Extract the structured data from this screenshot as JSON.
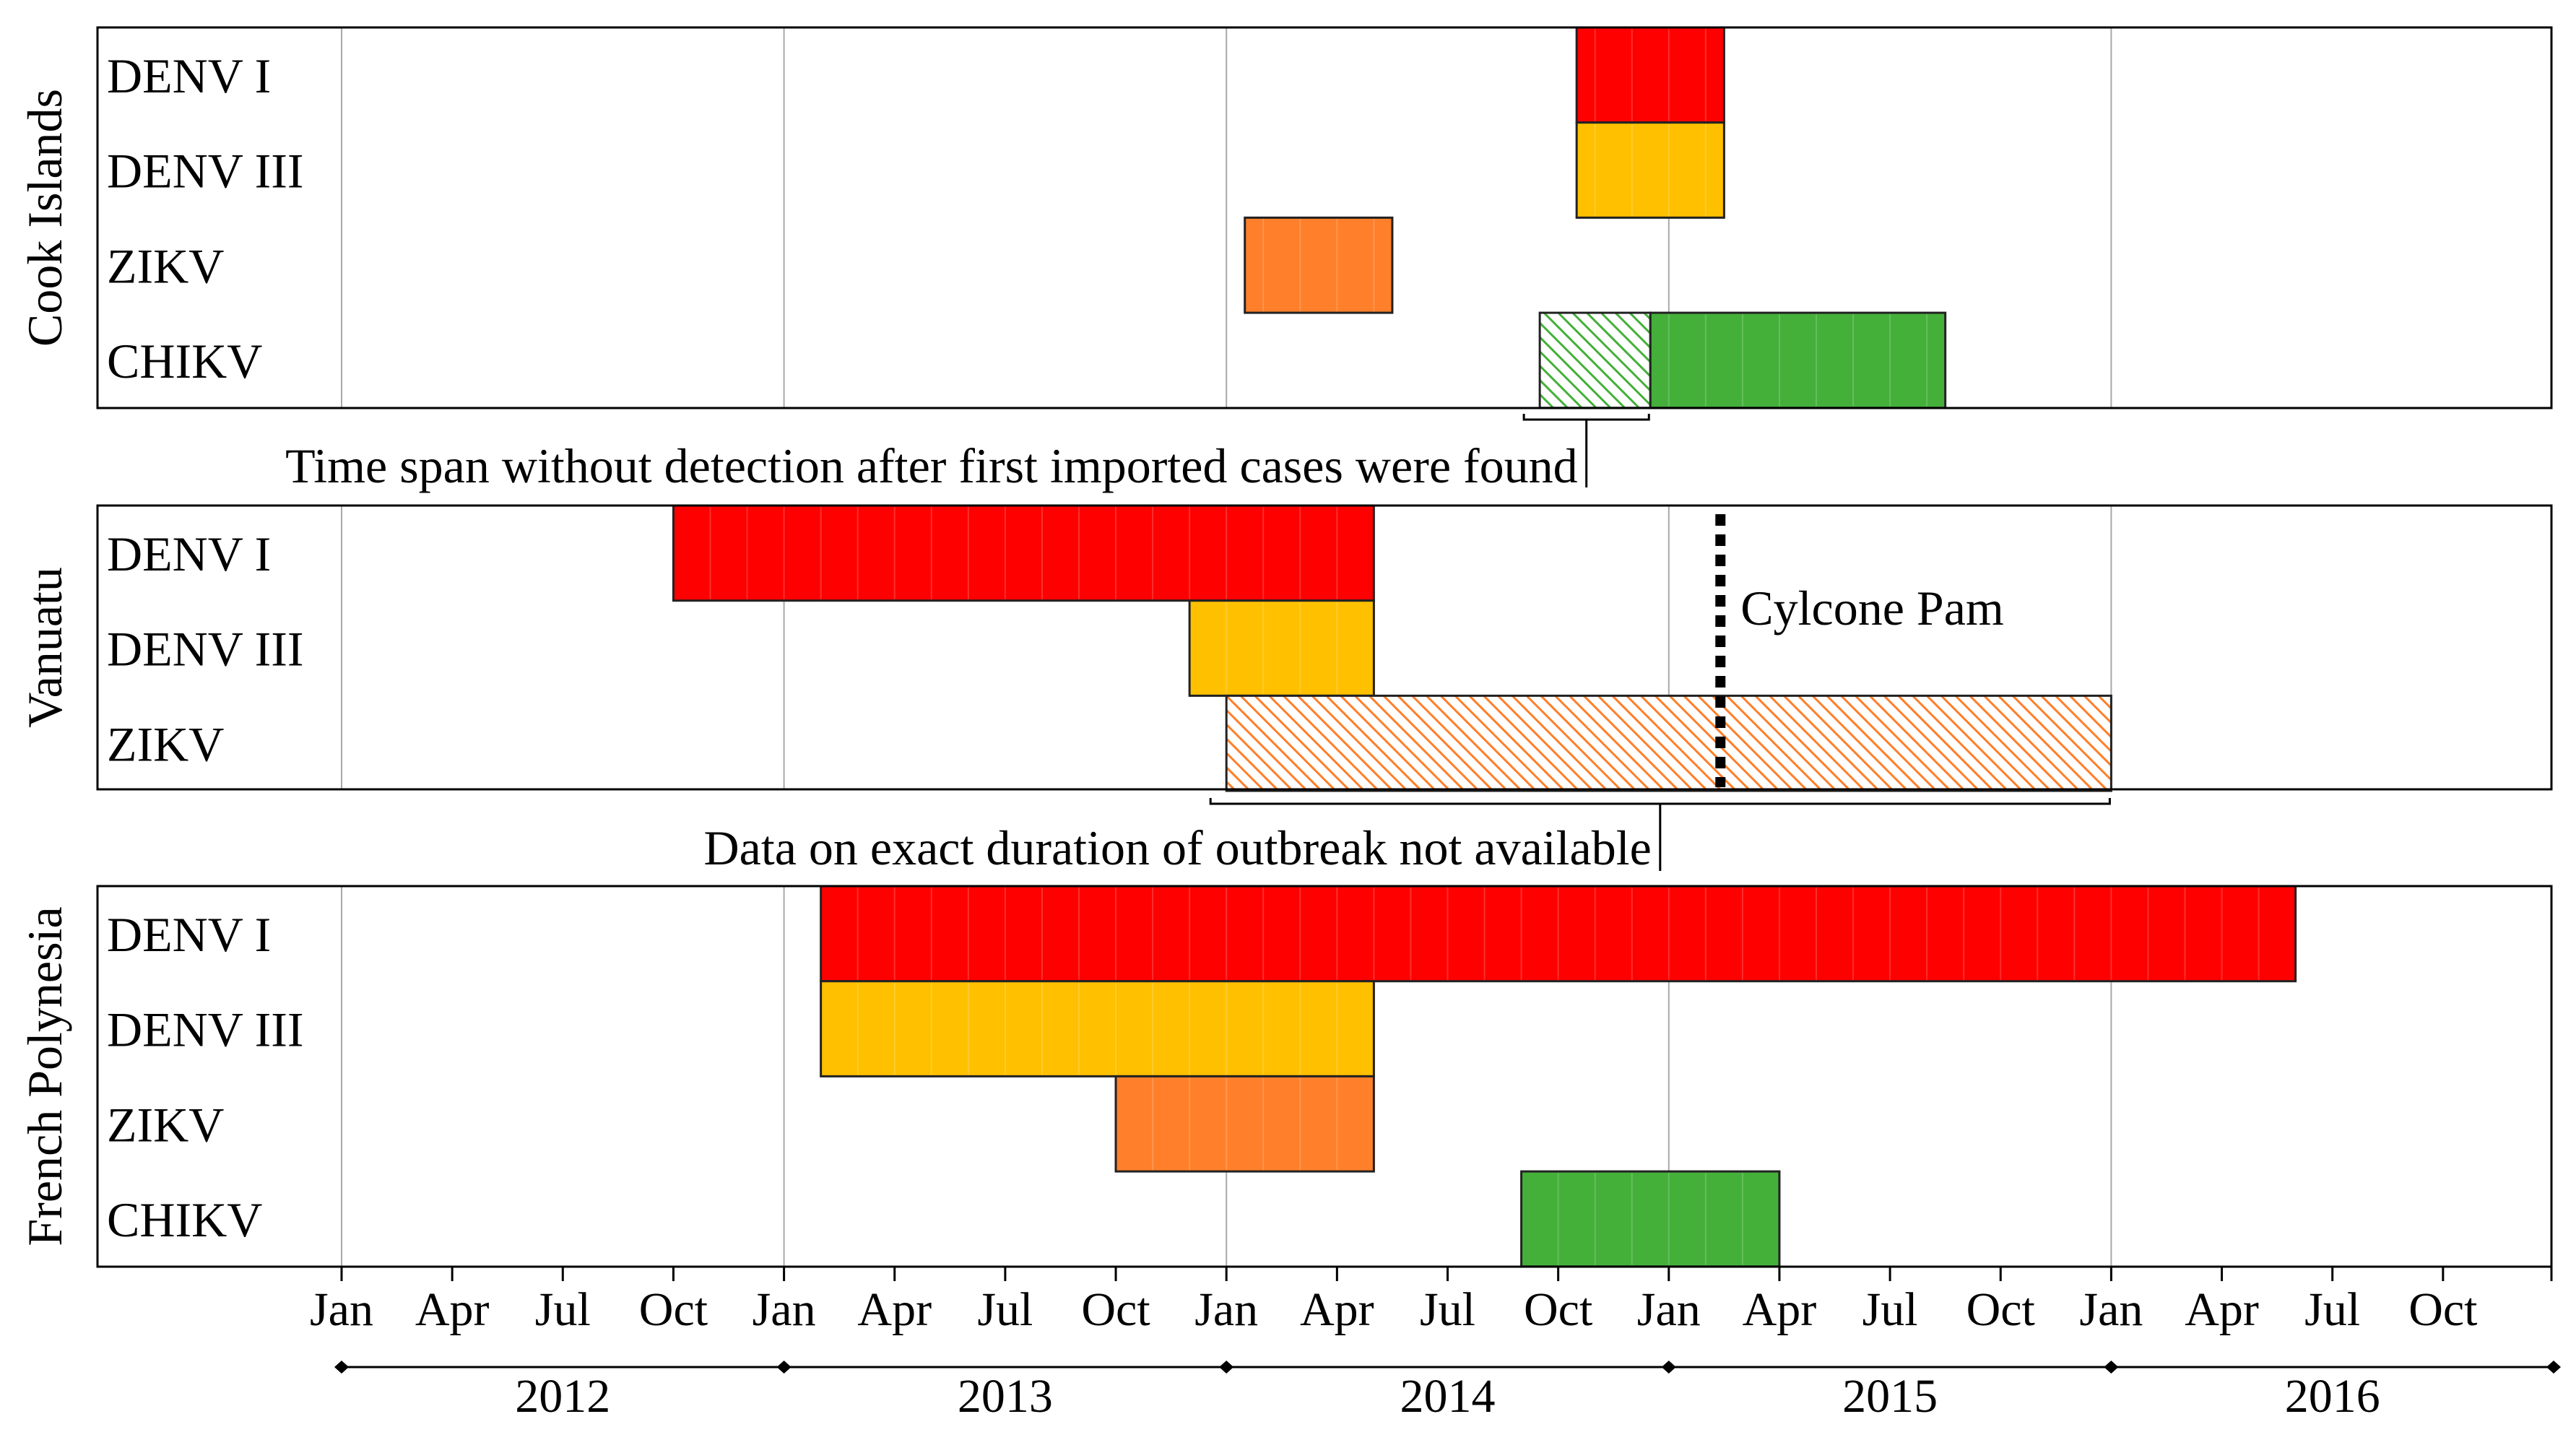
{
  "colors": {
    "DENV I": "#ff0000",
    "DENV III": "#ffc000",
    "ZIKV": "#ff7f2a",
    "CHIKV": "#44b03a",
    "frame": "#000000",
    "grid": "#a9a9a9"
  },
  "chart_data": {
    "type": "gantt",
    "x_axis": {
      "unit": "months since Jan 2012",
      "range": [
        -6.6,
        60
      ],
      "month_ticks": [
        "Jan",
        "Apr",
        "Jul",
        "Oct",
        "Jan",
        "Apr",
        "Jul",
        "Oct",
        "Jan",
        "Apr",
        "Jul",
        "Oct",
        "Jan",
        "Apr",
        "Jul",
        "Oct",
        "Jan",
        "Apr",
        "Jul",
        "Oct"
      ],
      "month_tick_values": [
        0,
        3,
        6,
        9,
        12,
        15,
        18,
        21,
        24,
        27,
        30,
        33,
        36,
        39,
        42,
        45,
        48,
        51,
        54,
        57
      ],
      "gridlines_at": [
        0,
        12,
        24,
        36,
        48
      ],
      "years": [
        "2012",
        "2013",
        "2014",
        "2015",
        "2016"
      ],
      "year_boundaries": [
        0,
        12,
        24,
        36,
        48,
        60
      ]
    },
    "panels": [
      {
        "country": "Cook Islands",
        "rows": [
          "DENV I",
          "DENV III",
          "ZIKV",
          "CHIKV"
        ],
        "bars": [
          {
            "row": "DENV I",
            "start": 33.5,
            "end": 37.5,
            "style": "solid"
          },
          {
            "row": "DENV III",
            "start": 33.5,
            "end": 37.5,
            "style": "solid"
          },
          {
            "row": "ZIKV",
            "start": 24.5,
            "end": 28.5,
            "style": "solid"
          },
          {
            "row": "CHIKV",
            "start": 32.5,
            "end": 35.5,
            "style": "hatched"
          },
          {
            "row": "CHIKV",
            "start": 35.5,
            "end": 43.5,
            "style": "solid"
          }
        ]
      },
      {
        "country": "Vanuatu",
        "rows": [
          "DENV I",
          "DENV III",
          "ZIKV"
        ],
        "bars": [
          {
            "row": "DENV I",
            "start": 9.0,
            "end": 28.0,
            "style": "solid"
          },
          {
            "row": "DENV III",
            "start": 23.0,
            "end": 28.0,
            "style": "solid"
          },
          {
            "row": "ZIKV",
            "start": 24.0,
            "end": 48.0,
            "style": "hatched"
          }
        ],
        "event": {
          "label": "Cylcone Pam",
          "at": 37.4
        }
      },
      {
        "country": "French Polynesia",
        "rows": [
          "DENV I",
          "DENV III",
          "ZIKV",
          "CHIKV"
        ],
        "bars": [
          {
            "row": "DENV I",
            "start": 13.0,
            "end": 53.0,
            "style": "solid"
          },
          {
            "row": "DENV III",
            "start": 13.0,
            "end": 28.0,
            "style": "solid"
          },
          {
            "row": "ZIKV",
            "start": 21.0,
            "end": 28.0,
            "style": "solid"
          },
          {
            "row": "CHIKV",
            "start": 32.0,
            "end": 39.0,
            "style": "solid"
          }
        ]
      }
    ],
    "annotations": [
      {
        "text": "Time span without detection after first imported cases were found",
        "span": [
          32.5,
          35.5
        ],
        "below_panel": 0
      },
      {
        "text": "Data on exact duration of outbreak not available",
        "span": [
          24,
          48
        ],
        "below_panel": 1
      }
    ]
  }
}
